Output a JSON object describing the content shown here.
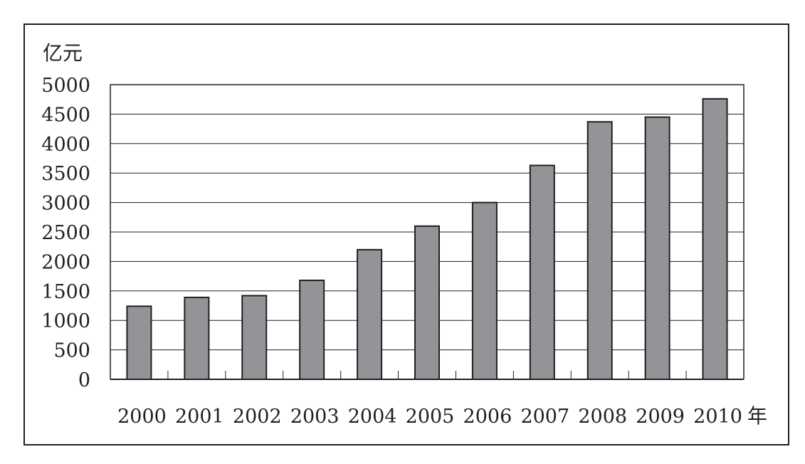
{
  "chart_data": {
    "type": "bar",
    "ylabel": "亿元",
    "xlabel": "年",
    "categories": [
      "2000",
      "2001",
      "2002",
      "2003",
      "2004",
      "2005",
      "2006",
      "2007",
      "2008",
      "2009",
      "2010"
    ],
    "values": [
      1240,
      1390,
      1420,
      1680,
      2200,
      2600,
      3000,
      3630,
      4370,
      4450,
      4760
    ],
    "ylim": [
      0,
      5000
    ],
    "yticks": [
      0,
      500,
      1000,
      1500,
      2000,
      2500,
      3000,
      3500,
      4000,
      4500,
      5000
    ],
    "grid": true,
    "colors": {
      "bar": "#929497",
      "outline": "#231f20",
      "grid": "#231f20"
    }
  }
}
